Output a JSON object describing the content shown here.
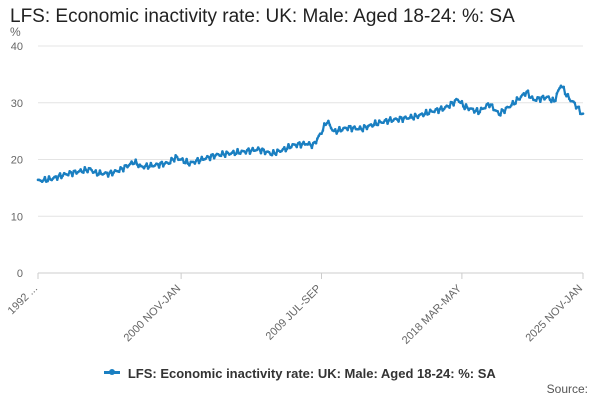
{
  "chart_data": {
    "type": "line",
    "title": "LFS: Economic inactivity rate: UK: Male: Aged 18-24: %: SA",
    "ylabel": "%",
    "xlabel": "",
    "ylim": [
      0,
      40
    ],
    "yticks": [
      0,
      10,
      20,
      30,
      40
    ],
    "xticks": [
      {
        "index": 0,
        "label": "1992 ..."
      },
      {
        "index": 104,
        "label": "2000 NOV-JAN"
      },
      {
        "index": 206,
        "label": "2009 JUL-SEP"
      },
      {
        "index": 308,
        "label": "2018 MAR-MAY"
      },
      {
        "index": 396,
        "label": "2025 NOV-JAN"
      }
    ],
    "total_points": 397,
    "series": [
      {
        "name": "LFS: Economic inactivity rate: UK: Male: Aged 18-24: %: SA",
        "color": "#1a7fc1",
        "anchors": [
          [
            0,
            16.2
          ],
          [
            10,
            16.6
          ],
          [
            20,
            17.4
          ],
          [
            30,
            17.9
          ],
          [
            38,
            18.3
          ],
          [
            42,
            17.6
          ],
          [
            52,
            17.5
          ],
          [
            60,
            18.2
          ],
          [
            70,
            19.6
          ],
          [
            75,
            18.7
          ],
          [
            85,
            19.0
          ],
          [
            95,
            19.4
          ],
          [
            100,
            20.4
          ],
          [
            110,
            19.3
          ],
          [
            120,
            20.1
          ],
          [
            130,
            20.8
          ],
          [
            140,
            21.1
          ],
          [
            150,
            21.4
          ],
          [
            160,
            21.8
          ],
          [
            170,
            21.0
          ],
          [
            180,
            21.9
          ],
          [
            185,
            22.5
          ],
          [
            195,
            22.8
          ],
          [
            200,
            22.5
          ],
          [
            206,
            24.8
          ],
          [
            210,
            26.8
          ],
          [
            215,
            24.9
          ],
          [
            225,
            25.6
          ],
          [
            235,
            25.4
          ],
          [
            245,
            26.3
          ],
          [
            255,
            26.9
          ],
          [
            265,
            27.2
          ],
          [
            275,
            27.6
          ],
          [
            285,
            28.4
          ],
          [
            295,
            29.0
          ],
          [
            300,
            29.7
          ],
          [
            305,
            30.6
          ],
          [
            310,
            29.3
          ],
          [
            320,
            28.4
          ],
          [
            328,
            29.8
          ],
          [
            335,
            28.0
          ],
          [
            345,
            29.8
          ],
          [
            355,
            31.9
          ],
          [
            360,
            30.5
          ],
          [
            370,
            31.0
          ],
          [
            375,
            30.2
          ],
          [
            380,
            33.2
          ],
          [
            385,
            31.0
          ],
          [
            390,
            29.8
          ],
          [
            396,
            27.8
          ]
        ]
      }
    ]
  },
  "legend": {
    "label": "LFS: Economic inactivity rate: UK: Male: Aged 18-24: %: SA"
  },
  "footer": {
    "source": "Source:"
  },
  "colors": {
    "series": "#1a7fc1",
    "grid": "#e4e4e4",
    "axis": "#cccccc"
  }
}
